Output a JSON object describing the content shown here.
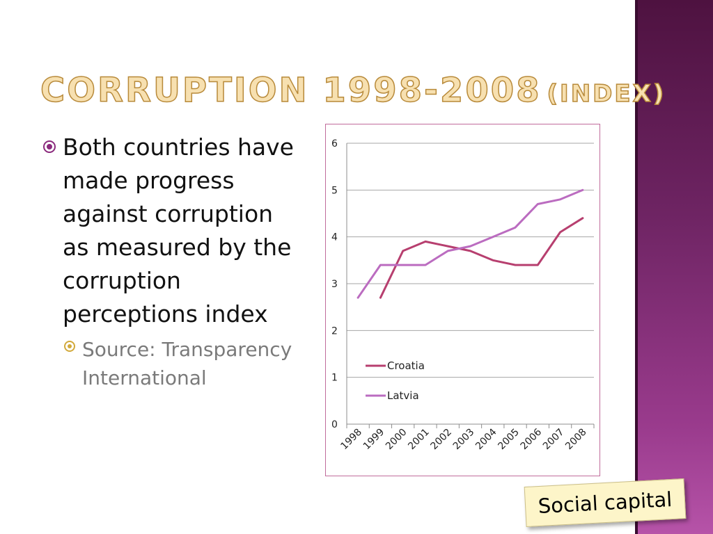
{
  "slide": {
    "title_main": "Corruption 1998-2008",
    "title_sub": "(Index)",
    "bullet_main": "Both countries have made progress against corruption as measured by the corruption perceptions index",
    "bullet_sub": "Source: Transparency International",
    "stamp_label": "Social capital"
  },
  "colors": {
    "croatia": "#b73f6f",
    "latvia": "#bb6cc0",
    "band": "#6e2463",
    "title": "#f7e0b0"
  },
  "chart_data": {
    "type": "line",
    "title": "",
    "xlabel": "",
    "ylabel": "",
    "x": [
      "1998",
      "1999",
      "2000",
      "2001",
      "2002",
      "2003",
      "2004",
      "2005",
      "2006",
      "2007",
      "2008"
    ],
    "ylim": [
      0,
      6
    ],
    "yticks": [
      "0",
      "1",
      "2",
      "3",
      "4",
      "5",
      "6"
    ],
    "grid": true,
    "legend": "center-left",
    "series": [
      {
        "name": "Croatia",
        "values": [
          null,
          2.7,
          3.7,
          3.9,
          3.8,
          3.7,
          3.5,
          3.4,
          3.4,
          4.1,
          4.4
        ]
      },
      {
        "name": "Latvia",
        "values": [
          2.7,
          3.4,
          3.4,
          3.4,
          3.7,
          3.8,
          4.0,
          4.2,
          4.7,
          4.8,
          5.0
        ]
      }
    ]
  }
}
